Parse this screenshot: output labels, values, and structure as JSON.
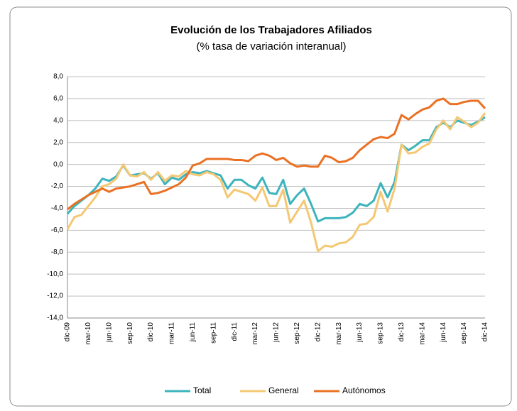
{
  "chart_data": {
    "type": "line",
    "title": "Evolución de los Trabajadores Afiliados",
    "subtitle": "(% tasa de variación interanual)",
    "categories": [
      "dic-09",
      null,
      null,
      "mar-10",
      null,
      null,
      "jun-10",
      null,
      null,
      "sep-10",
      null,
      null,
      "dic-10",
      null,
      null,
      "mar-11",
      null,
      null,
      "jun-11",
      null,
      null,
      "sep-11",
      null,
      null,
      "dic-11",
      null,
      null,
      "mar-12",
      null,
      null,
      "jun-12",
      null,
      null,
      "sep-12",
      null,
      null,
      "dic-12",
      null,
      null,
      "mar-13",
      null,
      null,
      "jun-13",
      null,
      null,
      "sep-13",
      null,
      null,
      "dic-13",
      null,
      null,
      "mar-14",
      null,
      null,
      "jun-14",
      null,
      null,
      "sep-14",
      null,
      null,
      "dic-14"
    ],
    "series": [
      {
        "name": "Total",
        "color": "#3cb4bd",
        "values": [
          -4.5,
          -3.8,
          -3.3,
          -2.8,
          -2.2,
          -1.3,
          -1.5,
          -1.1,
          -0.1,
          -1.0,
          -0.9,
          -0.8,
          -1.3,
          -0.8,
          -1.8,
          -1.2,
          -1.4,
          -0.9,
          -0.7,
          -0.8,
          -0.6,
          -0.8,
          -1.0,
          -2.2,
          -1.4,
          -1.4,
          -1.9,
          -2.2,
          -1.2,
          -2.6,
          -2.7,
          -1.4,
          -3.6,
          -2.8,
          -2.2,
          -3.6,
          -5.2,
          -4.9,
          -4.9,
          -4.9,
          -4.8,
          -4.4,
          -3.6,
          -3.8,
          -3.3,
          -1.7,
          -3.0,
          -1.6,
          1.8,
          1.3,
          1.7,
          2.2,
          2.2,
          3.4,
          3.8,
          3.4,
          4.0,
          3.8,
          3.6,
          3.9,
          4.3
        ]
      },
      {
        "name": "General",
        "color": "#f4c872",
        "values": [
          -5.9,
          -4.8,
          -4.6,
          -3.8,
          -3.0,
          -2.0,
          -1.8,
          -1.3,
          0.0,
          -1.0,
          -1.1,
          -0.7,
          -1.4,
          -0.7,
          -1.5,
          -1.0,
          -1.1,
          -0.6,
          -0.9,
          -1.0,
          -0.7,
          -0.9,
          -1.4,
          -3.0,
          -2.3,
          -2.5,
          -2.7,
          -3.3,
          -2.1,
          -3.8,
          -3.8,
          -2.3,
          -5.3,
          -4.3,
          -3.3,
          -5.3,
          -7.9,
          -7.4,
          -7.5,
          -7.2,
          -7.1,
          -6.6,
          -5.5,
          -5.4,
          -4.8,
          -2.5,
          -4.3,
          -2.2,
          1.8,
          1.0,
          1.1,
          1.6,
          1.9,
          3.2,
          4.0,
          3.2,
          4.3,
          3.9,
          3.4,
          3.8,
          4.7
        ]
      },
      {
        "name": "Autónomos",
        "color": "#ea7124",
        "values": [
          -4.1,
          -3.6,
          -3.2,
          -2.8,
          -2.5,
          -2.2,
          -2.5,
          -2.2,
          -2.1,
          -2.0,
          -1.8,
          -1.6,
          -2.7,
          -2.6,
          -2.4,
          -2.1,
          -1.8,
          -1.2,
          -0.1,
          0.1,
          0.5,
          0.5,
          0.5,
          0.5,
          0.4,
          0.4,
          0.3,
          0.8,
          1.0,
          0.8,
          0.4,
          0.6,
          0.1,
          -0.2,
          -0.1,
          -0.2,
          -0.2,
          0.8,
          0.6,
          0.2,
          0.3,
          0.6,
          1.3,
          1.8,
          2.3,
          2.5,
          2.4,
          2.8,
          4.5,
          4.1,
          4.6,
          5.0,
          5.2,
          5.8,
          6.0,
          5.5,
          5.5,
          5.7,
          5.8,
          5.8,
          5.1
        ]
      }
    ],
    "ylim": [
      -14,
      8
    ],
    "yticks": [
      {
        "value": -14,
        "label": "-14,0"
      },
      {
        "value": -12,
        "label": "-12,0"
      },
      {
        "value": -10,
        "label": "-10,0"
      },
      {
        "value": -8,
        "label": "-8,0"
      },
      {
        "value": -6,
        "label": "-6,0"
      },
      {
        "value": -4,
        "label": "-4,0"
      },
      {
        "value": -2,
        "label": "-2,0"
      },
      {
        "value": 0,
        "label": "0,0"
      },
      {
        "value": 2,
        "label": "2,0"
      },
      {
        "value": 4,
        "label": "4,0"
      },
      {
        "value": 6,
        "label": "6,0"
      },
      {
        "value": 8,
        "label": "8,0"
      }
    ],
    "grid": true,
    "legend": "bottom"
  }
}
